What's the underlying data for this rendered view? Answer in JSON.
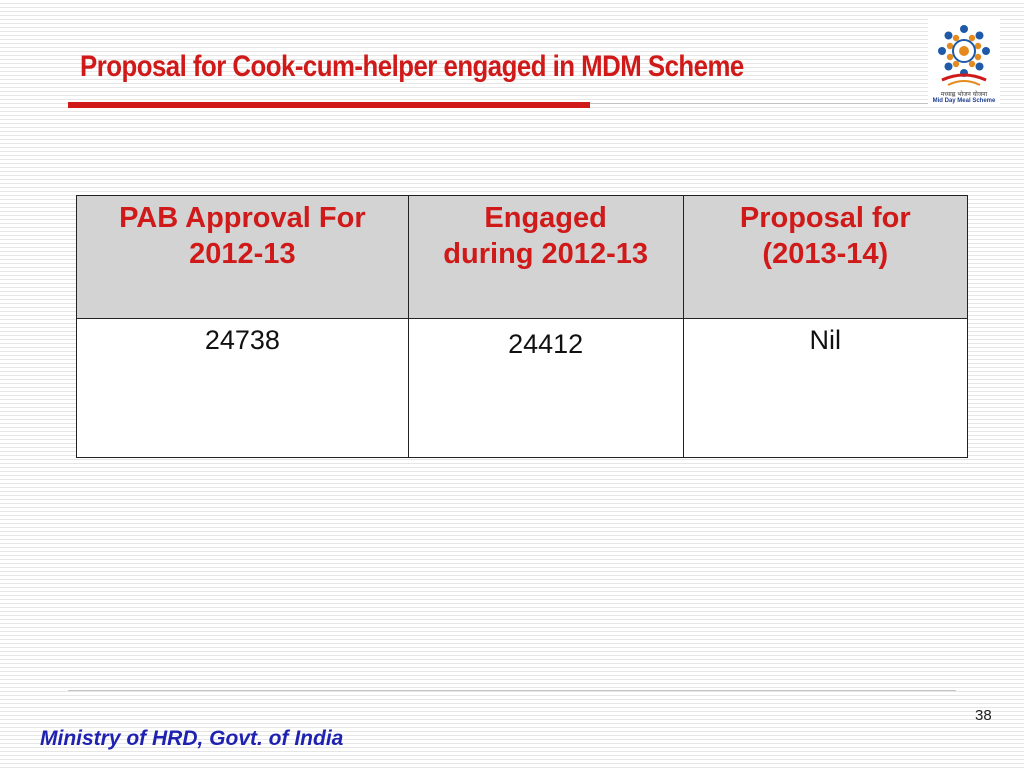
{
  "slide": {
    "title": "Proposal for Cook-cum-helper engaged in MDM Scheme",
    "page_number": "38",
    "footer": "Ministry of HRD, Govt. of India"
  },
  "logo": {
    "hindi_text": "मध्याह्न भोजन योजना",
    "english_text": "Mid Day Meal Scheme",
    "icon": "mid-day-meal-logo-icon"
  },
  "table": {
    "headers": [
      {
        "line1": "PAB Approval For",
        "line2": "2012-13"
      },
      {
        "line1": "Engaged",
        "line2": "during 2012-13"
      },
      {
        "line1": "Proposal for",
        "line2": "(2013-14)"
      }
    ],
    "rows": [
      [
        "24738",
        "24412",
        "Nil"
      ]
    ]
  },
  "colors": {
    "title": "#d01919",
    "header_bg": "#d3d3d3",
    "footer_text": "#1f22b0"
  }
}
